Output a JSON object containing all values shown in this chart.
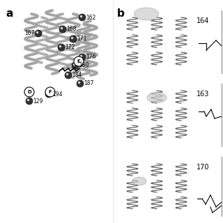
{
  "title_a": "a",
  "title_b": "b",
  "background_color": "#ffffff",
  "left_labels": [
    "162",
    "168",
    "171",
    "172",
    "176",
    "180",
    "184",
    "187",
    "194",
    "129",
    "167"
  ],
  "helix_labels": [
    "E",
    "D",
    "F"
  ],
  "right_labels": [
    "164",
    "163",
    "170"
  ],
  "panel_bg": "#f0f0f0",
  "sphere_color": "#222222",
  "sphere_color_light": "#888888",
  "helix_color": "#aaaaaa",
  "line_color": "#333333"
}
